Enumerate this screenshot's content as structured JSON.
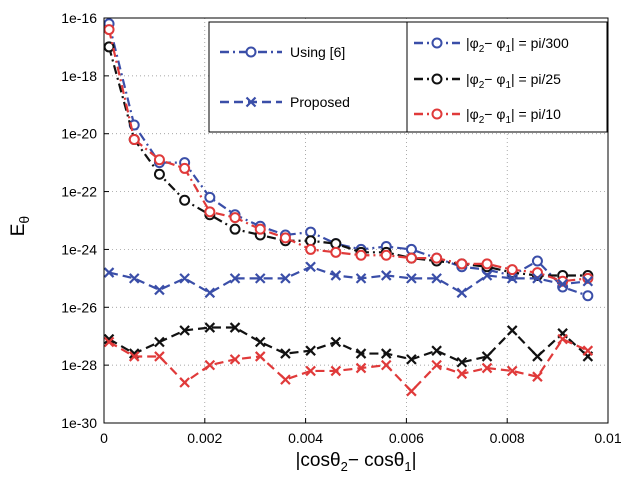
{
  "chart_data": {
    "type": "line",
    "xlabel_main": "|cosθ",
    "xlabel_sub1": "2",
    "xlabel_mid": "− cosθ",
    "xlabel_sub2": "1",
    "xlabel_end": "|",
    "ylabel_main": "E",
    "ylabel_sub": "θ",
    "xlim": [
      0,
      0.01
    ],
    "ylim_log10": [
      -30,
      -16
    ],
    "yscale": "log",
    "grid": true,
    "x_tick_labels": [
      "0",
      "0.002",
      "0.004",
      "0.006",
      "0.008",
      "0.01"
    ],
    "x_tick_values": [
      0,
      0.002,
      0.004,
      0.006,
      0.008,
      0.01
    ],
    "y_tick_labels": [
      "1e-16",
      "1e-18",
      "1e-20",
      "1e-22",
      "1e-24",
      "1e-26",
      "1e-28",
      "1e-30"
    ],
    "y_tick_exponents": [
      -16,
      -18,
      -20,
      -22,
      -24,
      -26,
      -28,
      -30
    ],
    "x": [
      0.0001,
      0.0006,
      0.0011,
      0.0016,
      0.0021,
      0.0026,
      0.0031,
      0.0036,
      0.0041,
      0.0046,
      0.0051,
      0.0056,
      0.0061,
      0.0066,
      0.0071,
      0.0076,
      0.0081,
      0.0086,
      0.0091,
      0.0096
    ],
    "legend_method": {
      "placement": "top-center",
      "entries": [
        {
          "label": "Using [6]",
          "marker": "circle",
          "style": "dashdot",
          "color": "#3a4ea8"
        },
        {
          "label": "Proposed",
          "marker": "x",
          "style": "dashed",
          "color": "#3a4ea8"
        }
      ]
    },
    "legend_phi": {
      "placement": "top-right",
      "entries": [
        {
          "pre": "|φ",
          "s1": "2",
          "mid": "− φ",
          "s2": "1",
          "post": "| = pi/300",
          "color": "#3a4ea8"
        },
        {
          "pre": "|φ",
          "s1": "2",
          "mid": "− φ",
          "s2": "1",
          "post": "| = pi/25",
          "color": "#111111"
        },
        {
          "pre": "|φ",
          "s1": "2",
          "mid": "− φ",
          "s2": "1",
          "post": "| = pi/10",
          "color": "#e03a3a"
        }
      ]
    },
    "series": [
      {
        "method": "Using [6]",
        "phi": "pi/300",
        "color": "#3a4ea8",
        "marker": "circle",
        "style": "dashdot",
        "log10_values": [
          -16.2,
          -19.7,
          -21.0,
          -21.0,
          -22.2,
          -22.8,
          -23.2,
          -23.5,
          -23.4,
          -23.8,
          -24.0,
          -23.9,
          -24.0,
          -24.3,
          -24.6,
          -24.7,
          -24.9,
          -24.4,
          -25.3,
          -25.6
        ]
      },
      {
        "method": "Using [6]",
        "phi": "pi/25",
        "color": "#111111",
        "marker": "circle",
        "style": "dashdot",
        "log10_values": [
          -17.0,
          -20.2,
          -21.4,
          -22.3,
          -22.8,
          -23.3,
          -23.5,
          -23.7,
          -23.7,
          -23.8,
          -24.1,
          -24.1,
          -24.3,
          -24.4,
          -24.5,
          -24.6,
          -24.8,
          -24.9,
          -24.9,
          -24.9
        ]
      },
      {
        "method": "Using [6]",
        "phi": "pi/10",
        "color": "#e03a3a",
        "marker": "circle",
        "style": "dashdot",
        "log10_values": [
          -16.4,
          -20.2,
          -20.9,
          -21.2,
          -22.7,
          -22.9,
          -23.3,
          -23.6,
          -24.0,
          -24.1,
          -24.2,
          -24.2,
          -24.3,
          -24.3,
          -24.5,
          -24.5,
          -24.7,
          -24.8,
          -25.1,
          -25.0
        ]
      },
      {
        "method": "Proposed",
        "phi": "pi/300",
        "color": "#3a4ea8",
        "marker": "x",
        "style": "dashed",
        "log10_values": [
          -24.8,
          -25.0,
          -25.4,
          -25.0,
          -25.5,
          -25.0,
          -25.0,
          -25.0,
          -24.6,
          -24.9,
          -25.0,
          -24.9,
          -25.0,
          -25.0,
          -25.5,
          -24.9,
          -25.0,
          -25.0,
          -25.2,
          -25.1
        ]
      },
      {
        "method": "Proposed",
        "phi": "pi/25",
        "color": "#111111",
        "marker": "x",
        "style": "dashed",
        "log10_values": [
          -27.1,
          -27.6,
          -27.2,
          -26.8,
          -26.7,
          -26.7,
          -27.2,
          -27.6,
          -27.5,
          -27.2,
          -27.6,
          -27.6,
          -27.8,
          -27.5,
          -27.9,
          -27.7,
          -26.8,
          -27.7,
          -26.9,
          -27.7
        ]
      },
      {
        "method": "Proposed",
        "phi": "pi/10",
        "color": "#e03a3a",
        "marker": "x",
        "style": "dashed",
        "log10_values": [
          -27.2,
          -27.7,
          -27.7,
          -28.6,
          -28.0,
          -27.8,
          -27.7,
          -28.5,
          -28.2,
          -28.2,
          -28.1,
          -28.0,
          -28.9,
          -28.0,
          -28.3,
          -28.1,
          -28.2,
          -28.4,
          -27.1,
          -27.5
        ]
      }
    ]
  }
}
